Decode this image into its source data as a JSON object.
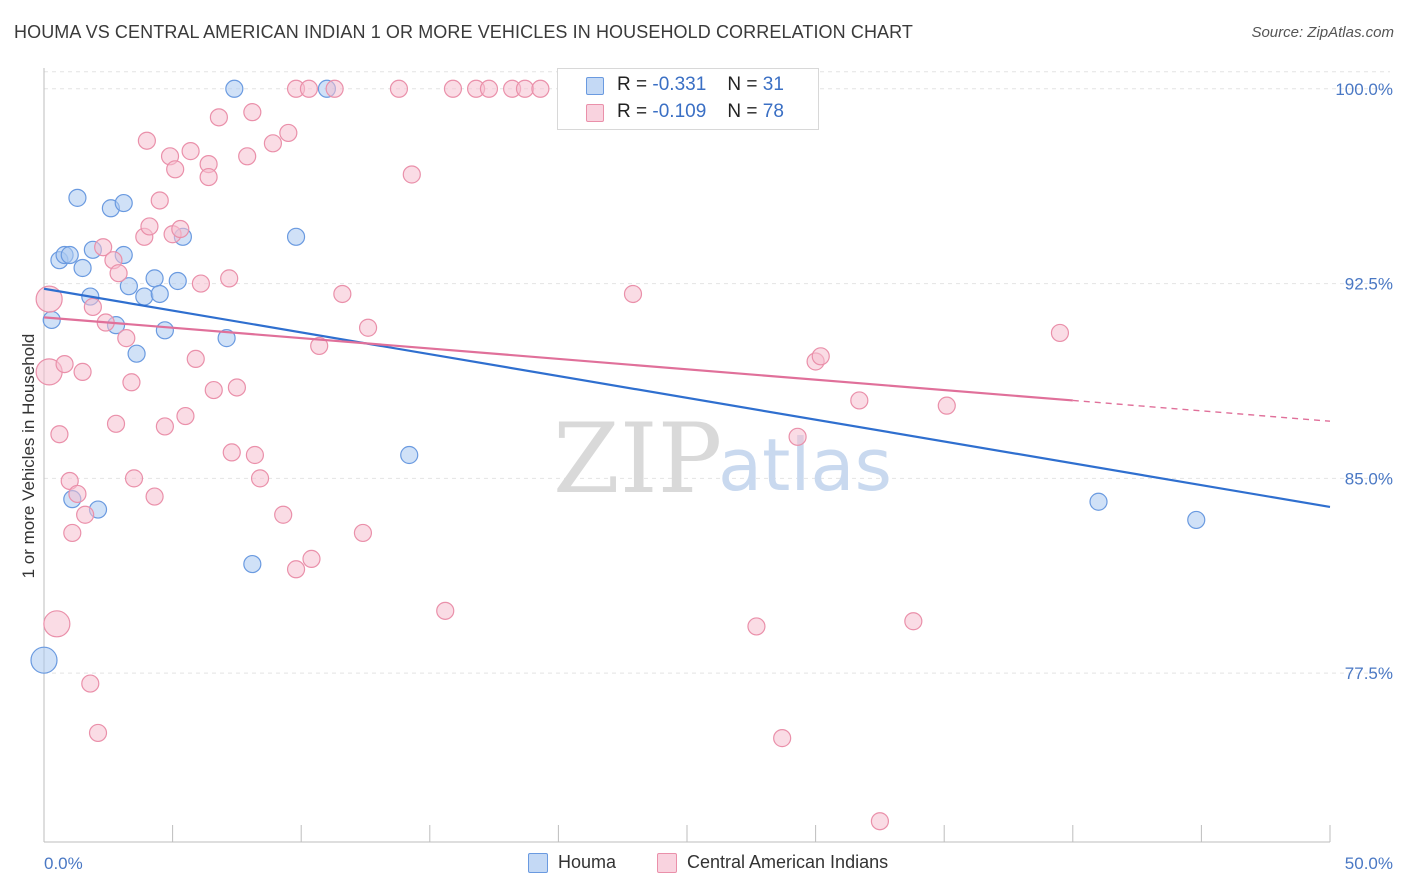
{
  "chart_data": {
    "type": "scatter",
    "title": "HOUMA VS CENTRAL AMERICAN INDIAN 1 OR MORE VEHICLES IN HOUSEHOLD CORRELATION CHART",
    "source": "Source: ZipAtlas.com",
    "xlabel": "",
    "ylabel": "1 or more Vehicles in Household",
    "xlim": [
      0,
      50
    ],
    "ylim": [
      71.0,
      100.8
    ],
    "x_tick_labels": [
      "0.0%",
      "50.0%"
    ],
    "y_ticks": [
      {
        "value": 100.0,
        "label": "100.0%"
      },
      {
        "value": 92.5,
        "label": "92.5%"
      },
      {
        "value": 85.0,
        "label": "85.0%"
      },
      {
        "value": 77.5,
        "label": "77.5%"
      }
    ],
    "legend": [
      {
        "r_label": "R =",
        "r_value": "-0.331",
        "n_label": "N =",
        "n_value": "31"
      },
      {
        "r_label": "R =",
        "r_value": "-0.109",
        "n_label": "N =",
        "n_value": "78"
      }
    ],
    "watermark": {
      "zip": "ZIP",
      "atlas": "atlas"
    },
    "series": [
      {
        "name": "Houma",
        "color_fill": "#aac8f0",
        "color_stroke": "#6a9ae0",
        "line_color": "#2f6fcf",
        "trend": {
          "x": [
            0.0,
            50.0
          ],
          "y": [
            92.3,
            83.9
          ]
        },
        "points": [
          [
            0.0,
            78.0
          ],
          [
            0.3,
            91.1
          ],
          [
            0.6,
            93.4
          ],
          [
            0.8,
            93.6
          ],
          [
            1.0,
            93.6
          ],
          [
            1.1,
            84.2
          ],
          [
            1.3,
            95.8
          ],
          [
            1.5,
            93.1
          ],
          [
            1.8,
            92.0
          ],
          [
            1.9,
            93.8
          ],
          [
            2.1,
            83.8
          ],
          [
            2.6,
            95.4
          ],
          [
            2.8,
            90.9
          ],
          [
            3.1,
            95.6
          ],
          [
            3.1,
            93.6
          ],
          [
            3.3,
            92.4
          ],
          [
            3.6,
            89.8
          ],
          [
            3.9,
            92.0
          ],
          [
            4.3,
            92.7
          ],
          [
            4.5,
            92.1
          ],
          [
            4.7,
            90.7
          ],
          [
            5.2,
            92.6
          ],
          [
            5.4,
            94.3
          ],
          [
            7.1,
            90.4
          ],
          [
            7.4,
            100.0
          ],
          [
            8.1,
            81.7
          ],
          [
            9.8,
            94.3
          ],
          [
            11.0,
            100.0
          ],
          [
            14.2,
            85.9
          ],
          [
            41.0,
            84.1
          ],
          [
            44.8,
            83.4
          ]
        ]
      },
      {
        "name": "Central American Indians",
        "color_fill": "#f6bfd0",
        "color_stroke": "#ea90aa",
        "line_color": "#e0709a",
        "trend": {
          "x": [
            0.0,
            40.0
          ],
          "y": [
            91.2,
            88.0
          ]
        },
        "trend_dashed": {
          "x": [
            40.0,
            50.0
          ],
          "y": [
            88.0,
            87.2
          ]
        },
        "points": [
          [
            0.2,
            91.9
          ],
          [
            0.2,
            89.1
          ],
          [
            0.5,
            79.4
          ],
          [
            0.6,
            86.7
          ],
          [
            0.8,
            89.4
          ],
          [
            1.0,
            84.9
          ],
          [
            1.1,
            82.9
          ],
          [
            1.3,
            84.4
          ],
          [
            1.5,
            89.1
          ],
          [
            1.6,
            83.6
          ],
          [
            1.8,
            77.1
          ],
          [
            1.9,
            91.6
          ],
          [
            2.1,
            75.2
          ],
          [
            2.3,
            93.9
          ],
          [
            2.4,
            91.0
          ],
          [
            2.7,
            93.4
          ],
          [
            2.8,
            87.1
          ],
          [
            2.9,
            92.9
          ],
          [
            3.2,
            90.4
          ],
          [
            3.4,
            88.7
          ],
          [
            3.5,
            85.0
          ],
          [
            3.9,
            94.3
          ],
          [
            4.0,
            98.0
          ],
          [
            4.1,
            94.7
          ],
          [
            4.3,
            84.3
          ],
          [
            4.5,
            95.7
          ],
          [
            4.7,
            87.0
          ],
          [
            4.9,
            97.4
          ],
          [
            5.0,
            94.4
          ],
          [
            5.1,
            96.9
          ],
          [
            5.3,
            94.6
          ],
          [
            5.5,
            87.4
          ],
          [
            5.7,
            97.6
          ],
          [
            5.9,
            89.6
          ],
          [
            6.1,
            92.5
          ],
          [
            6.4,
            97.1
          ],
          [
            6.4,
            96.6
          ],
          [
            6.6,
            88.4
          ],
          [
            6.8,
            98.9
          ],
          [
            7.2,
            92.7
          ],
          [
            7.3,
            86.0
          ],
          [
            7.5,
            88.5
          ],
          [
            7.9,
            97.4
          ],
          [
            8.1,
            99.1
          ],
          [
            8.2,
            85.9
          ],
          [
            8.4,
            85.0
          ],
          [
            8.9,
            97.9
          ],
          [
            9.3,
            83.6
          ],
          [
            9.5,
            98.3
          ],
          [
            9.8,
            100.0
          ],
          [
            9.8,
            81.5
          ],
          [
            10.3,
            100.0
          ],
          [
            10.4,
            81.9
          ],
          [
            10.7,
            90.1
          ],
          [
            11.3,
            100.0
          ],
          [
            11.6,
            92.1
          ],
          [
            12.4,
            82.9
          ],
          [
            12.6,
            90.8
          ],
          [
            13.8,
            100.0
          ],
          [
            14.3,
            96.7
          ],
          [
            15.6,
            79.9
          ],
          [
            15.9,
            100.0
          ],
          [
            16.8,
            100.0
          ],
          [
            17.3,
            100.0
          ],
          [
            18.2,
            100.0
          ],
          [
            18.7,
            100.0
          ],
          [
            19.3,
            100.0
          ],
          [
            22.9,
            92.1
          ],
          [
            27.7,
            79.3
          ],
          [
            28.7,
            75.0
          ],
          [
            29.3,
            86.6
          ],
          [
            30.0,
            89.5
          ],
          [
            30.2,
            89.7
          ],
          [
            31.7,
            88.0
          ],
          [
            32.5,
            71.8
          ],
          [
            33.8,
            79.5
          ],
          [
            35.1,
            87.8
          ],
          [
            39.5,
            90.6
          ]
        ]
      }
    ]
  }
}
